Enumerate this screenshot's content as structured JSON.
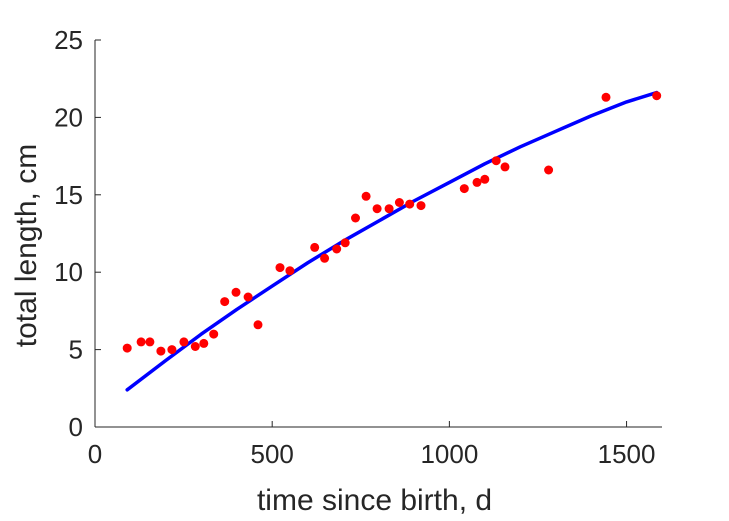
{
  "chart_data": {
    "type": "scatter",
    "title": "",
    "xlabel": "time since birth, d",
    "ylabel": "total length, cm",
    "xlim": [
      0,
      1600
    ],
    "ylim": [
      0,
      25
    ],
    "x_ticks": [
      0,
      500,
      1000,
      1500
    ],
    "y_ticks": [
      0,
      5,
      10,
      15,
      20,
      25
    ],
    "x_tick_labels": [
      "0",
      "500",
      "1000",
      "1500"
    ],
    "y_tick_labels": [
      "0",
      "5",
      "10",
      "15",
      "20",
      "25"
    ],
    "grid": false,
    "legend": "none",
    "series": [
      {
        "type": "scatter",
        "color": "#ff0000",
        "points": [
          [
            91,
            5.1
          ],
          [
            130,
            5.5
          ],
          [
            155,
            5.5
          ],
          [
            186,
            4.9
          ],
          [
            217,
            5.0
          ],
          [
            251,
            5.5
          ],
          [
            283,
            5.2
          ],
          [
            307,
            5.4
          ],
          [
            335,
            6.0
          ],
          [
            366,
            8.1
          ],
          [
            398,
            8.7
          ],
          [
            432,
            8.4
          ],
          [
            460,
            6.6
          ],
          [
            522,
            10.3
          ],
          [
            550,
            10.1
          ],
          [
            620,
            11.6
          ],
          [
            648,
            10.9
          ],
          [
            682,
            11.5
          ],
          [
            706,
            11.9
          ],
          [
            735,
            13.5
          ],
          [
            765,
            14.9
          ],
          [
            796,
            14.1
          ],
          [
            830,
            14.1
          ],
          [
            859,
            14.5
          ],
          [
            888,
            14.4
          ],
          [
            920,
            14.3
          ],
          [
            1042,
            15.4
          ],
          [
            1078,
            15.8
          ],
          [
            1100,
            16.0
          ],
          [
            1132,
            17.2
          ],
          [
            1157,
            16.8
          ],
          [
            1280,
            16.6
          ],
          [
            1442,
            21.3
          ],
          [
            1585,
            21.4
          ]
        ]
      },
      {
        "type": "line",
        "color": "#0000ff",
        "x": [
          91,
          200,
          300,
          400,
          500,
          600,
          700,
          800,
          900,
          1000,
          1100,
          1200,
          1300,
          1400,
          1500,
          1585
        ],
        "y": [
          2.4,
          4.3,
          6.0,
          7.6,
          9.1,
          10.6,
          12.0,
          13.3,
          14.6,
          15.8,
          17.0,
          18.1,
          19.1,
          20.1,
          21.0,
          21.6
        ]
      }
    ]
  }
}
